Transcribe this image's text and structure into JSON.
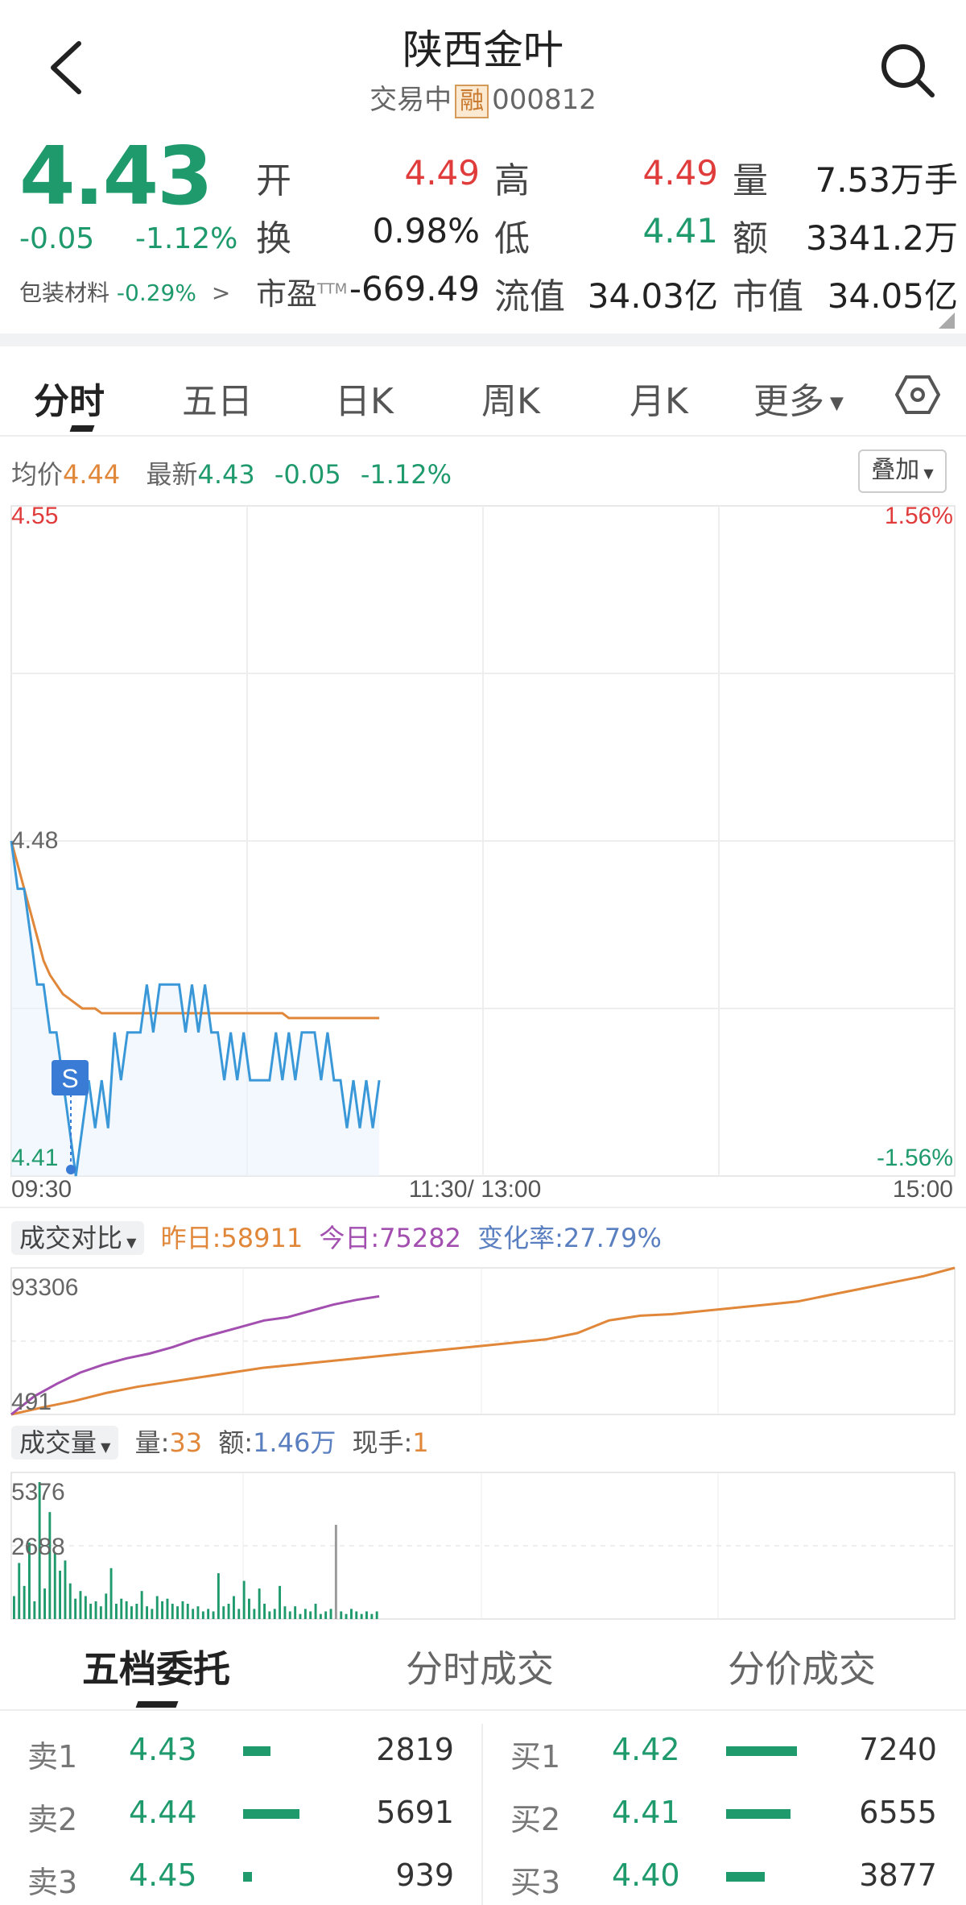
{
  "header": {
    "stock_name": "陕西金叶",
    "status": "交易中",
    "margin_tag": "融",
    "code": "000812"
  },
  "quote": {
    "price": "4.43",
    "change": "-0.05",
    "change_pct": "-1.12%",
    "sector_name": "包装材料",
    "sector_change": "-0.29%",
    "rows": [
      {
        "l1": "开",
        "v1": "4.49",
        "l2": "高",
        "v2": "4.49",
        "l3": "量",
        "v3": "7.53万手"
      },
      {
        "l1": "换",
        "v1": "0.98%",
        "l2": "低",
        "v2": "4.41",
        "l3": "额",
        "v3": "3341.2万"
      },
      {
        "l1": "市盈",
        "sup": "TTM",
        "v1": "-669.49",
        "l2": "流值",
        "v2": "34.03亿",
        "l3": "市值",
        "v3": "34.05亿"
      }
    ]
  },
  "tabs": [
    "分时",
    "五日",
    "日K",
    "周K",
    "月K",
    "更多"
  ],
  "intraday": {
    "avg_label": "均价",
    "avg_value": "4.44",
    "latest_label": "最新",
    "latest_value": "4.43",
    "latest_change": "-0.05",
    "latest_pct": "-1.12%",
    "overlay_button": "叠加",
    "y_top": "4.55",
    "y_mid": "4.48",
    "y_bottom": "4.41",
    "pct_top": "1.56%",
    "pct_bottom": "-1.56%",
    "time_start": "09:30",
    "time_mid": "11:30/ 13:00",
    "time_end": "15:00",
    "signal_marker": "S",
    "colors": {
      "price_line": "#3a98d8",
      "avg_line": "#e0873a",
      "up": "#e03c3c",
      "down": "#1f9a6c"
    }
  },
  "chart_data": [
    {
      "type": "line",
      "title": "分时",
      "ylim": [
        4.41,
        4.55
      ],
      "x_labels": [
        "09:30",
        "11:30/ 13:00",
        "15:00"
      ],
      "series": [
        {
          "name": "最新",
          "values": [
            4.48,
            4.47,
            4.47,
            4.46,
            4.45,
            4.45,
            4.44,
            4.44,
            4.43,
            4.42,
            4.41,
            4.42,
            4.43,
            4.42,
            4.43,
            4.42,
            4.44,
            4.43,
            4.44,
            4.44,
            4.44,
            4.45,
            4.44,
            4.45,
            4.45,
            4.45,
            4.45,
            4.44,
            4.45,
            4.44,
            4.45,
            4.44,
            4.44,
            4.43,
            4.44,
            4.43,
            4.44,
            4.43,
            4.43,
            4.43,
            4.43,
            4.44,
            4.43,
            4.44,
            4.43,
            4.44,
            4.44,
            4.44,
            4.43,
            4.44,
            4.43,
            4.43,
            4.42,
            4.43,
            4.42,
            4.43,
            4.42,
            4.43
          ]
        },
        {
          "name": "均价",
          "values": [
            4.48,
            4.475,
            4.47,
            4.465,
            4.46,
            4.455,
            4.452,
            4.45,
            4.448,
            4.447,
            4.446,
            4.445,
            4.445,
            4.445,
            4.444,
            4.444,
            4.444,
            4.444,
            4.444,
            4.444,
            4.444,
            4.444,
            4.444,
            4.444,
            4.444,
            4.444,
            4.444,
            4.444,
            4.444,
            4.444,
            4.444,
            4.444,
            4.444,
            4.444,
            4.444,
            4.444,
            4.444,
            4.444,
            4.444,
            4.444,
            4.444,
            4.444,
            4.444,
            4.443,
            4.443,
            4.443,
            4.443,
            4.443,
            4.443,
            4.443,
            4.443,
            4.443,
            4.443,
            4.443,
            4.443,
            4.443,
            4.443,
            4.443
          ]
        }
      ]
    },
    {
      "type": "line",
      "title": "成交对比",
      "ylim": [
        491,
        93306
      ],
      "series": [
        {
          "name": "昨日",
          "values": [
            491,
            5000,
            9000,
            14000,
            18000,
            21000,
            24000,
            27000,
            30000,
            32000,
            34000,
            36000,
            38000,
            40000,
            42000,
            44000,
            46000,
            48000,
            52000,
            60000,
            63000,
            64000,
            66000,
            68000,
            70000,
            72000,
            76000,
            80000,
            84000,
            88000,
            93306
          ]
        },
        {
          "name": "今日",
          "values": [
            491,
            12000,
            20000,
            27000,
            32000,
            36000,
            39000,
            43000,
            48000,
            52000,
            56000,
            60000,
            62000,
            66000,
            70000,
            73000,
            75282
          ]
        }
      ]
    },
    {
      "type": "bar",
      "title": "成交量",
      "ylim": [
        0,
        5376
      ],
      "y_labels": [
        "5376",
        "2688"
      ],
      "values": [
        900,
        2200,
        1300,
        3000,
        700,
        5376,
        1200,
        4200,
        2600,
        1900,
        2300,
        1400,
        800,
        1100,
        900,
        600,
        700,
        500,
        1000,
        2000,
        600,
        800,
        700,
        500,
        600,
        1100,
        500,
        400,
        900,
        700,
        800,
        600,
        500,
        700,
        600,
        400,
        500,
        300,
        400,
        300,
        1800,
        500,
        600,
        900,
        400,
        1500,
        800,
        400,
        1200,
        600,
        300,
        400,
        1300,
        500,
        300,
        500,
        200,
        400,
        300,
        600,
        200,
        300,
        400,
        3700,
        300,
        200,
        400,
        300,
        200,
        300,
        200,
        300
      ]
    }
  ],
  "compare": {
    "button": "成交对比",
    "yesterday_label": "昨日:",
    "yesterday_value": "58911",
    "today_label": "今日:",
    "today_value": "75282",
    "rate_label": "变化率:",
    "rate_value": "27.79%",
    "y_top": "93306",
    "y_bottom": "491",
    "colors": {
      "yesterday": "#e0873a",
      "today": "#a24fb0",
      "rate": "#5a7fc0"
    }
  },
  "volume": {
    "button": "成交量",
    "vol_label": "量:",
    "vol_value": "33",
    "amt_label": "额:",
    "amt_value": "1.46万",
    "hand_label": "现手:",
    "hand_value": "1",
    "y_top": "5376",
    "y_mid": "2688"
  },
  "orderbook": {
    "tabs": [
      "五档委托",
      "分时成交",
      "分价成交"
    ],
    "sell": [
      {
        "label": "卖1",
        "price": "4.43",
        "volume": "2819",
        "ratio": 0.39
      },
      {
        "label": "卖2",
        "price": "4.44",
        "volume": "5691",
        "ratio": 0.79
      },
      {
        "label": "卖3",
        "price": "4.45",
        "volume": "939",
        "ratio": 0.13
      }
    ],
    "buy": [
      {
        "label": "买1",
        "price": "4.42",
        "volume": "7240",
        "ratio": 1.0
      },
      {
        "label": "买2",
        "price": "4.41",
        "volume": "6555",
        "ratio": 0.91
      },
      {
        "label": "买3",
        "price": "4.40",
        "volume": "3877",
        "ratio": 0.54
      }
    ]
  }
}
